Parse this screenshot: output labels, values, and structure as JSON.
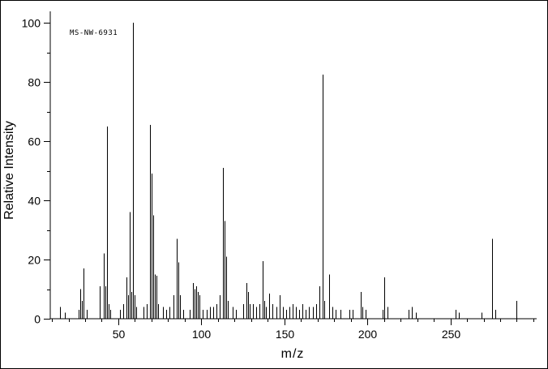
{
  "chart_data": {
    "type": "bar",
    "variant": "mass-spectrum-stick-plot",
    "annotation": "MS-NW-6931",
    "title": "",
    "xlabel": "m/z",
    "ylabel": "Relative Intensity",
    "xlim": [
      9,
      301
    ],
    "ylim": [
      0,
      100
    ],
    "x_major_ticks": [
      50,
      100,
      150,
      200,
      250
    ],
    "x_minor_step": 10,
    "y_major_ticks": [
      0,
      20,
      40,
      60,
      80,
      100
    ],
    "y_minor_step": 10,
    "grid": false,
    "line_color": "#000000",
    "peaks": [
      [
        15,
        4
      ],
      [
        18,
        2
      ],
      [
        26,
        3
      ],
      [
        27,
        10
      ],
      [
        28,
        6
      ],
      [
        29,
        17
      ],
      [
        31,
        3
      ],
      [
        39,
        11
      ],
      [
        41,
        22
      ],
      [
        42,
        11
      ],
      [
        43,
        65
      ],
      [
        44,
        5
      ],
      [
        45,
        3
      ],
      [
        51,
        3
      ],
      [
        53,
        5
      ],
      [
        55,
        14
      ],
      [
        56,
        8
      ],
      [
        57,
        36
      ],
      [
        58,
        9
      ],
      [
        59,
        100
      ],
      [
        60,
        8
      ],
      [
        61,
        4
      ],
      [
        65,
        4
      ],
      [
        67,
        5
      ],
      [
        69,
        65.5
      ],
      [
        70,
        49
      ],
      [
        71,
        35
      ],
      [
        72,
        15
      ],
      [
        73,
        14.5
      ],
      [
        74,
        5
      ],
      [
        77,
        4
      ],
      [
        79,
        3
      ],
      [
        81,
        4
      ],
      [
        83,
        8
      ],
      [
        85,
        27
      ],
      [
        86,
        19
      ],
      [
        87,
        8
      ],
      [
        89,
        3
      ],
      [
        93,
        3
      ],
      [
        95,
        12
      ],
      [
        96,
        10
      ],
      [
        97,
        11
      ],
      [
        98,
        9
      ],
      [
        99,
        8
      ],
      [
        101,
        3
      ],
      [
        103,
        3
      ],
      [
        105,
        4
      ],
      [
        107,
        4
      ],
      [
        109,
        5
      ],
      [
        111,
        8
      ],
      [
        113,
        51
      ],
      [
        114,
        33
      ],
      [
        115,
        21
      ],
      [
        116,
        6
      ],
      [
        119,
        4
      ],
      [
        121,
        3
      ],
      [
        125,
        5
      ],
      [
        127,
        12
      ],
      [
        128,
        9
      ],
      [
        129,
        5
      ],
      [
        131,
        5
      ],
      [
        133,
        4
      ],
      [
        135,
        5
      ],
      [
        137,
        19.5
      ],
      [
        138,
        6
      ],
      [
        139,
        4
      ],
      [
        141,
        8.5
      ],
      [
        143,
        5
      ],
      [
        145,
        4
      ],
      [
        147,
        8
      ],
      [
        149,
        4
      ],
      [
        151,
        3
      ],
      [
        153,
        4
      ],
      [
        155,
        5
      ],
      [
        157,
        4
      ],
      [
        159,
        3
      ],
      [
        161,
        5
      ],
      [
        163,
        3
      ],
      [
        165,
        4
      ],
      [
        167,
        4
      ],
      [
        169,
        5
      ],
      [
        171,
        11
      ],
      [
        173,
        82.5
      ],
      [
        174,
        6
      ],
      [
        177,
        15
      ],
      [
        179,
        4
      ],
      [
        181,
        3
      ],
      [
        184,
        3
      ],
      [
        189,
        3
      ],
      [
        191,
        3
      ],
      [
        196,
        9
      ],
      [
        197,
        4
      ],
      [
        199,
        3
      ],
      [
        209,
        3
      ],
      [
        210,
        14
      ],
      [
        212,
        4
      ],
      [
        225,
        3
      ],
      [
        227,
        4
      ],
      [
        229,
        2
      ],
      [
        253,
        3
      ],
      [
        255,
        2
      ],
      [
        269,
        2
      ],
      [
        275,
        27
      ],
      [
        277,
        3
      ],
      [
        290,
        6
      ]
    ]
  }
}
